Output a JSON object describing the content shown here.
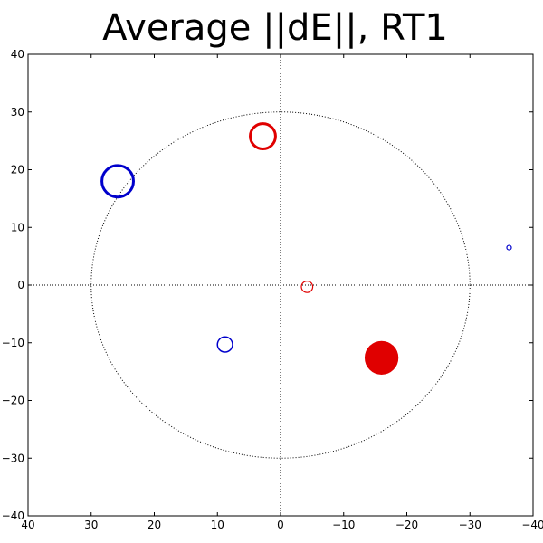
{
  "chart_data": {
    "type": "scatter",
    "title": "Average ||dE||, RT1",
    "xlabel": "",
    "ylabel": "",
    "xlim": [
      40,
      -40
    ],
    "ylim": [
      -40,
      40
    ],
    "x_ticks": [
      "40",
      "30",
      "20",
      "10",
      "0",
      "−10",
      "−20",
      "−30",
      "−40"
    ],
    "y_ticks": [
      "40",
      "30",
      "20",
      "10",
      "0",
      "−10",
      "−20",
      "−30",
      "−40"
    ],
    "x_tick_values": [
      40,
      30,
      20,
      10,
      0,
      -10,
      -20,
      -30,
      -40
    ],
    "y_tick_values": [
      40,
      30,
      20,
      10,
      0,
      -10,
      -20,
      -30,
      -40
    ],
    "grid": false,
    "reference_circle": {
      "center": [
        0,
        0
      ],
      "radius": 30,
      "style": "dotted"
    },
    "reference_lines": {
      "x": 0,
      "y": 0,
      "style": "dotted"
    },
    "colors": {
      "red": "#e00000",
      "blue": "#0000cc"
    },
    "points": [
      {
        "x": 2.8,
        "y": 25.8,
        "r": 2.0,
        "color": "red",
        "filled": false
      },
      {
        "x": 25.8,
        "y": 18.0,
        "r": 2.5,
        "color": "blue",
        "filled": false
      },
      {
        "x": -4.2,
        "y": -0.3,
        "r": 0.9,
        "color": "red",
        "filled": false
      },
      {
        "x": 8.8,
        "y": -10.3,
        "r": 1.2,
        "color": "blue",
        "filled": false
      },
      {
        "x": -16.0,
        "y": -12.6,
        "r": 2.6,
        "color": "red",
        "filled": true
      },
      {
        "x": -36.2,
        "y": 6.5,
        "r": 0.35,
        "color": "blue",
        "filled": false
      }
    ]
  }
}
